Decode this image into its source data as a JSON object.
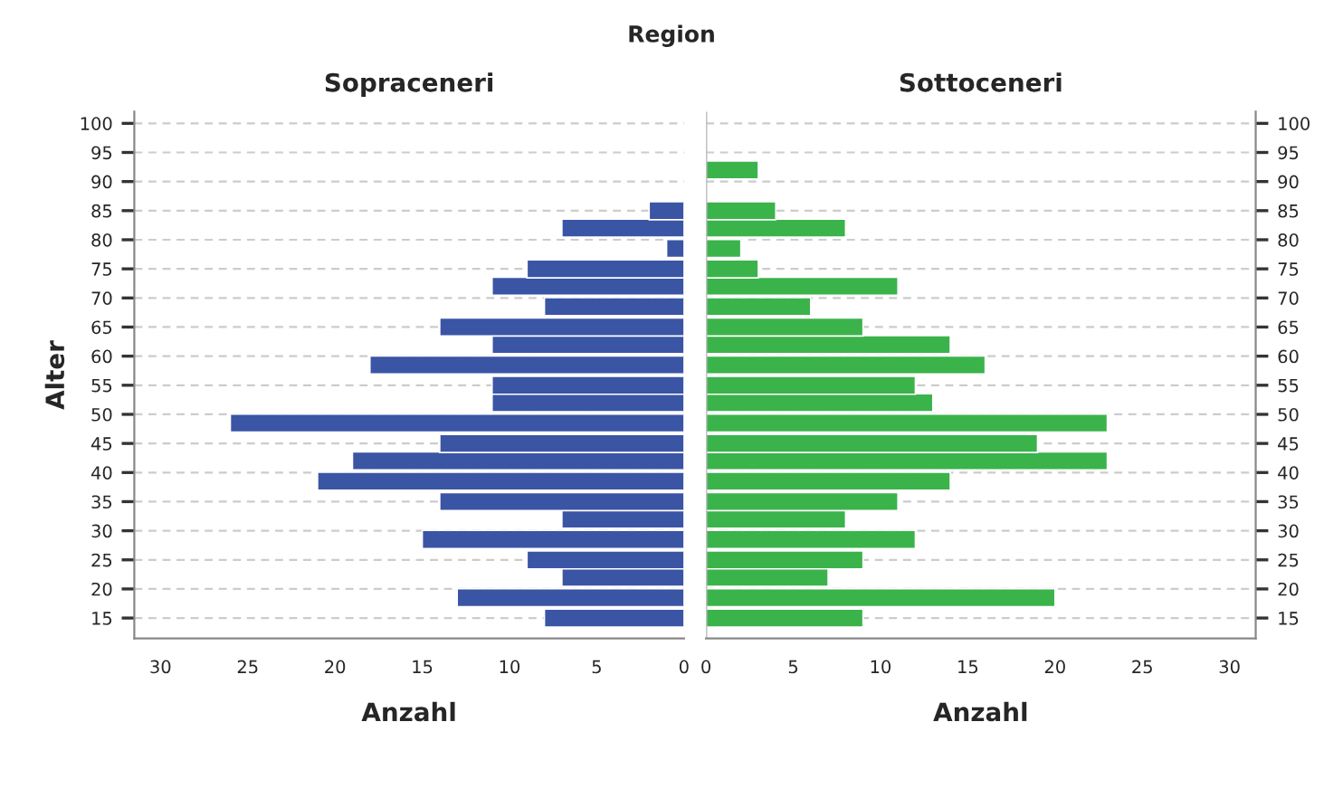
{
  "chart_data": [
    {
      "type": "bar",
      "orientation": "horizontal",
      "title": "Sopraceneri",
      "xlabel": "Anzahl",
      "ylabel": "Alter",
      "annotations": [
        "Region"
      ],
      "x": [
        15,
        18.5,
        22,
        25,
        28.5,
        32,
        35,
        38.5,
        42,
        45,
        48.5,
        52,
        55,
        58.5,
        62,
        65,
        68.5,
        72,
        75,
        78.5,
        82,
        85
      ],
      "series": [
        {
          "color": "#3b55a5",
          "values": [
            8,
            13,
            7,
            9,
            15,
            7,
            14,
            21,
            19,
            14,
            26,
            11,
            11,
            18,
            11,
            14,
            8,
            11,
            9,
            1,
            7,
            2
          ]
        }
      ],
      "xlim": [
        31.5,
        0
      ],
      "xticks": [
        30,
        25,
        20,
        15,
        10,
        5,
        0
      ],
      "ylim": [
        11.5,
        102
      ],
      "yticks": [
        15,
        20,
        25,
        30,
        35,
        40,
        45,
        50,
        55,
        60,
        65,
        70,
        75,
        80,
        85,
        90,
        95,
        100
      ],
      "grid": "y"
    },
    {
      "type": "bar",
      "orientation": "horizontal",
      "title": "Sottoceneri",
      "xlabel": "Anzahl",
      "x": [
        15,
        18.5,
        22,
        25,
        28.5,
        32,
        35,
        38.5,
        42,
        45,
        48.5,
        52,
        55,
        58.5,
        62,
        65,
        68.5,
        72,
        75,
        78.5,
        82,
        85,
        92
      ],
      "series": [
        {
          "color": "#3bb34b",
          "values": [
            9,
            20,
            7,
            9,
            12,
            8,
            11,
            14,
            23,
            19,
            23,
            13,
            12,
            16,
            14,
            9,
            6,
            11,
            3,
            2,
            8,
            4,
            3
          ]
        }
      ],
      "xlim": [
        0,
        31.5
      ],
      "xticks": [
        0,
        5,
        10,
        15,
        20,
        25,
        30
      ],
      "ylim": [
        11.5,
        102
      ],
      "yticks": [
        15,
        20,
        25,
        30,
        35,
        40,
        45,
        50,
        55,
        60,
        65,
        70,
        75,
        80,
        85,
        90,
        95,
        100
      ],
      "grid": "y"
    }
  ]
}
